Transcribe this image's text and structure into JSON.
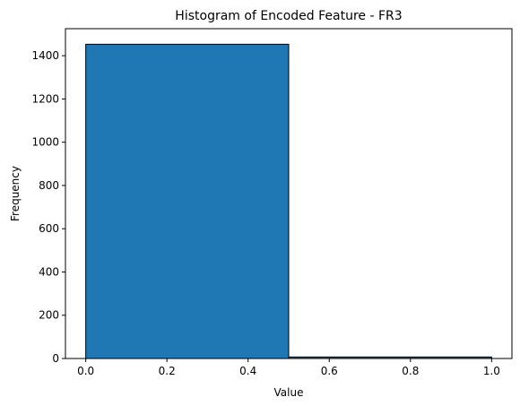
{
  "chart_data": {
    "type": "bar",
    "title": "Histogram of Encoded Feature - FR3",
    "xlabel": "Value",
    "ylabel": "Frequency",
    "bins": [
      {
        "x0": 0.0,
        "x1": 0.5,
        "count": 1453
      },
      {
        "x0": 0.5,
        "x1": 1.0,
        "count": 7
      }
    ],
    "xlim": [
      -0.05,
      1.05
    ],
    "ylim": [
      0,
      1525
    ],
    "xticks": [
      0.0,
      0.2,
      0.4,
      0.6,
      0.8,
      1.0
    ],
    "xtick_labels": [
      "0.0",
      "0.2",
      "0.4",
      "0.6",
      "0.8",
      "1.0"
    ],
    "yticks": [
      0,
      200,
      400,
      600,
      800,
      1000,
      1200,
      1400
    ],
    "ytick_labels": [
      "0",
      "200",
      "400",
      "600",
      "800",
      "1000",
      "1200",
      "1400"
    ],
    "bar_color": "#1f77b4",
    "edge_color": "#000000",
    "grid": false,
    "legend": false
  }
}
